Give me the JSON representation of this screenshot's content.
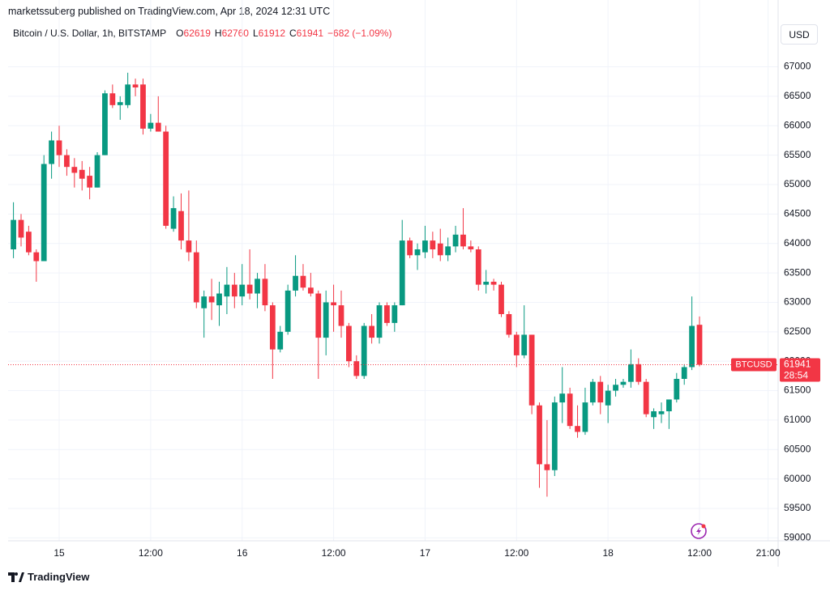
{
  "header": {
    "publisher": "marketssuberg published on TradingView.com, Apr 18, 2024 12:31 UTC",
    "symbol": "Bitcoin / U.S. Dollar, 1h, BITSTAMP",
    "ohlc_labels": [
      "O",
      "H",
      "L",
      "C"
    ],
    "change": "−682 (−1.09%)"
  },
  "currency_button": "USD",
  "footer": "TradingView",
  "chart_data": {
    "type": "candlestick",
    "x": [
      -6,
      -5,
      -4,
      -3,
      -2,
      -1,
      0,
      1,
      2,
      3,
      4,
      5,
      6,
      7,
      8,
      9,
      10,
      11,
      12,
      13,
      14,
      15,
      16,
      17,
      18,
      19,
      20,
      21,
      22,
      23,
      24,
      25,
      26,
      27,
      28,
      29,
      30,
      31,
      32,
      33,
      34,
      35,
      36,
      37,
      38,
      39,
      40,
      41,
      42,
      43,
      44,
      45,
      46,
      47,
      48,
      49,
      50,
      51,
      52,
      53,
      54,
      55,
      56,
      57,
      58,
      59,
      60,
      61,
      62,
      63,
      64,
      65,
      66,
      67,
      68,
      69,
      70,
      71,
      72,
      73,
      74,
      75,
      76,
      77,
      78,
      79,
      80,
      81,
      82,
      83,
      84
    ],
    "open": [
      63900,
      64400,
      64200,
      63850,
      63700,
      65350,
      65750,
      65500,
      65300,
      65250,
      65150,
      64950,
      65500,
      66550,
      66350,
      66350,
      66700,
      66700,
      65950,
      66050,
      65900,
      64250,
      64550,
      64050,
      63850,
      62900,
      63100,
      62950,
      63100,
      63300,
      63100,
      63300,
      63150,
      63400,
      62950,
      62200,
      62500,
      63200,
      63450,
      63250,
      63150,
      62400,
      63000,
      62950,
      62600,
      62000,
      61750,
      62600,
      62400,
      62950,
      62650,
      62950,
      64050,
      63800,
      63850,
      64050,
      64000,
      63800,
      63950,
      64150,
      63950,
      63900,
      63300,
      63350,
      63300,
      62800,
      62450,
      62100,
      62450,
      61250,
      60250,
      60150,
      61300,
      61450,
      60900,
      60800,
      61300,
      61650,
      61250,
      61500,
      61600,
      61650,
      61950,
      61650,
      61050,
      61100,
      61150,
      61350,
      61700,
      61900,
      62619
    ],
    "high": [
      64700,
      64500,
      64300,
      63900,
      65500,
      65900,
      66000,
      65600,
      65450,
      65400,
      65300,
      65550,
      66600,
      66700,
      66500,
      66900,
      66800,
      66800,
      66200,
      66500,
      66000,
      64800,
      64850,
      64900,
      64050,
      63200,
      63400,
      63350,
      63600,
      63500,
      63650,
      63900,
      63500,
      63650,
      63000,
      62600,
      63300,
      63800,
      63650,
      63500,
      63200,
      63200,
      63300,
      63200,
      62650,
      62100,
      62650,
      62800,
      63000,
      63000,
      63000,
      64400,
      64100,
      64000,
      64300,
      64200,
      64250,
      64100,
      64300,
      64600,
      64050,
      63950,
      63550,
      63400,
      63350,
      62850,
      62500,
      62950,
      62450,
      61300,
      61000,
      61400,
      61900,
      61550,
      61250,
      61550,
      61700,
      61750,
      61600,
      61700,
      61700,
      62200,
      62050,
      61700,
      61200,
      61300,
      61350,
      61800,
      61950,
      63100,
      62760
    ],
    "low": [
      63750,
      63950,
      63800,
      63350,
      63700,
      65100,
      65300,
      65150,
      64950,
      64900,
      64750,
      64950,
      65500,
      66300,
      66100,
      66300,
      66500,
      65850,
      65900,
      65900,
      64250,
      64200,
      63900,
      63700,
      62900,
      62400,
      62700,
      62600,
      62800,
      62900,
      62950,
      63050,
      62900,
      62850,
      61700,
      62150,
      62450,
      63100,
      63200,
      63100,
      61700,
      62100,
      62500,
      62400,
      61900,
      61700,
      61700,
      62300,
      62300,
      62600,
      62500,
      62950,
      63750,
      63550,
      63750,
      63750,
      63700,
      63700,
      63850,
      63900,
      63850,
      63200,
      63150,
      63200,
      62750,
      62400,
      61900,
      62050,
      61100,
      59850,
      59700,
      60050,
      60950,
      60850,
      60700,
      60750,
      61250,
      61100,
      60950,
      61400,
      61550,
      61550,
      61600,
      61050,
      60850,
      60950,
      60850,
      61300,
      61600,
      61850,
      61912
    ],
    "close": [
      64400,
      64100,
      63850,
      63700,
      65350,
      65750,
      65500,
      65300,
      65200,
      65100,
      64950,
      65500,
      66550,
      66350,
      66400,
      66700,
      66650,
      65950,
      66050,
      65900,
      64300,
      64600,
      64050,
      63850,
      63000,
      63100,
      63000,
      63150,
      63300,
      63100,
      63300,
      63150,
      63400,
      62950,
      62200,
      62500,
      63200,
      63450,
      63250,
      63150,
      62400,
      63000,
      62950,
      62600,
      62000,
      61750,
      62600,
      62400,
      62950,
      62650,
      62950,
      64050,
      63800,
      63900,
      64050,
      63900,
      63800,
      63950,
      64150,
      63950,
      63900,
      63300,
      63350,
      63300,
      62800,
      62450,
      62100,
      62450,
      61250,
      60250,
      60150,
      61300,
      61450,
      60900,
      60800,
      61300,
      61650,
      61300,
      61500,
      61600,
      61650,
      61950,
      61650,
      61100,
      61150,
      61150,
      61350,
      61700,
      61900,
      62600,
      61941
    ],
    "up_color": "#089981",
    "down_color": "#f23645",
    "xlim": [
      -6.7,
      94.1
    ],
    "xticks": [
      {
        "value": 0,
        "label": "15"
      },
      {
        "value": 12,
        "label": "12:00"
      },
      {
        "value": 24,
        "label": "16"
      },
      {
        "value": 36,
        "label": "12:00"
      },
      {
        "value": 48,
        "label": "17"
      },
      {
        "value": 60,
        "label": "12:00"
      },
      {
        "value": 72,
        "label": "18"
      },
      {
        "value": 84,
        "label": "12:00"
      },
      {
        "value": 93,
        "label": "21:00"
      }
    ],
    "ylim": [
      58950,
      67750
    ],
    "yticks": [
      59000,
      59500,
      60000,
      60500,
      61000,
      61500,
      62000,
      62500,
      63000,
      63500,
      64000,
      64500,
      65000,
      65500,
      66000,
      66500,
      67000
    ],
    "grid": true,
    "last_price_label": "BTCUSD",
    "countdown": "28:54"
  }
}
